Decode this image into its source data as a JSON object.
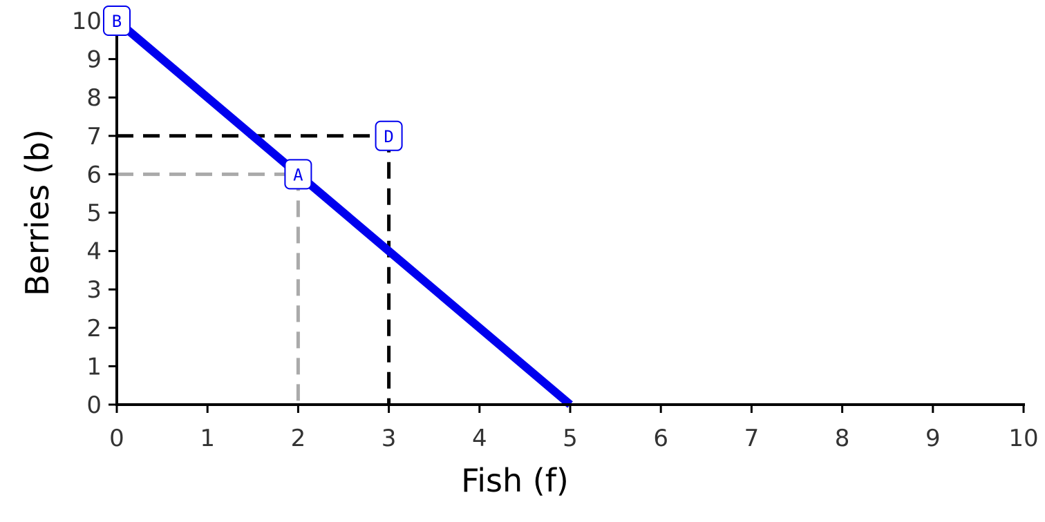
{
  "chart_data": {
    "type": "line",
    "xlabel": "Fish (f)",
    "ylabel": "Berries (b)",
    "xlim": [
      0,
      10
    ],
    "ylim": [
      0,
      10
    ],
    "x_ticks": [
      "0",
      "1",
      "2",
      "3",
      "4",
      "5",
      "6",
      "7",
      "8",
      "9",
      "10"
    ],
    "y_ticks": [
      "0",
      "1",
      "2",
      "3",
      "4",
      "5",
      "6",
      "7",
      "8",
      "9",
      "10"
    ],
    "grid": false,
    "series": [
      {
        "points": [
          [
            0,
            10
          ],
          [
            5,
            0
          ]
        ],
        "color": "#0000ee"
      }
    ],
    "guides": [
      {
        "point": [
          2,
          6
        ],
        "color": "#aaaaaa"
      },
      {
        "point": [
          3,
          7
        ],
        "color": "#000000"
      }
    ],
    "annotations": [
      {
        "label": "B",
        "x": 0,
        "y": 10
      },
      {
        "label": "A",
        "x": 2,
        "y": 6
      },
      {
        "label": "D",
        "x": 3,
        "y": 7
      }
    ],
    "colors": {
      "line": "#0000ee",
      "annotation": "#0000ee",
      "axis": "#000000"
    }
  }
}
